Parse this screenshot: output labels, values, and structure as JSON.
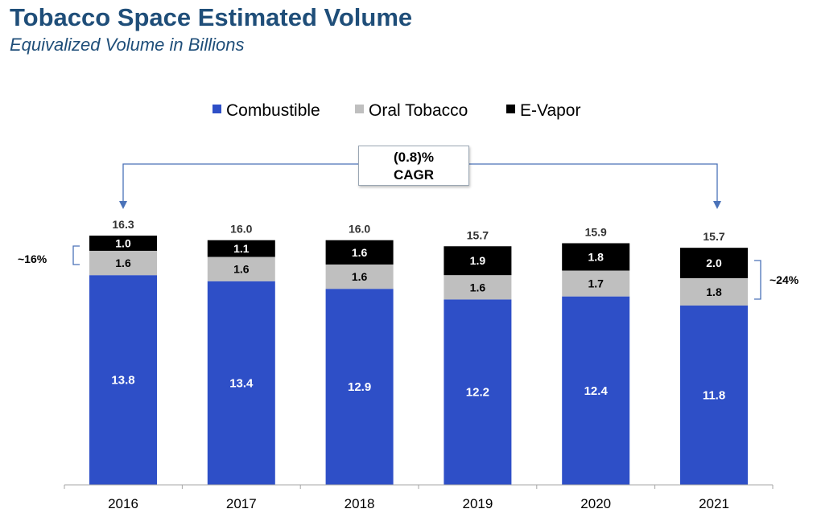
{
  "title": "Tobacco Space Estimated Volume",
  "subtitle": "Equivalized Volume in Billions",
  "cagr": {
    "value": "(0.8)%",
    "label": "CAGR"
  },
  "annotations": {
    "left": "~16%",
    "right": "~24%"
  },
  "colors": {
    "combustible": "#2e4fc7",
    "oral": "#bfbfbf",
    "evapor": "#000000",
    "title": "#1f4e79"
  },
  "chart_data": {
    "type": "bar",
    "stacked": true,
    "title": "Tobacco Space Estimated Volume",
    "subtitle": "Equivalized Volume in Billions",
    "categories": [
      "2016",
      "2017",
      "2018",
      "2019",
      "2020",
      "2021"
    ],
    "series": [
      {
        "name": "Combustible",
        "values": [
          13.8,
          13.4,
          12.9,
          12.2,
          12.4,
          11.8
        ]
      },
      {
        "name": "Oral Tobacco",
        "values": [
          1.6,
          1.6,
          1.6,
          1.6,
          1.7,
          1.8
        ]
      },
      {
        "name": "E-Vapor",
        "values": [
          1.0,
          1.1,
          1.6,
          1.9,
          1.8,
          2.0
        ]
      }
    ],
    "totals": [
      "16.3",
      "16.0",
      "16.0",
      "15.7",
      "15.9",
      "15.7"
    ],
    "value_labels": [
      [
        "13.8",
        "13.4",
        "12.9",
        "12.2",
        "12.4",
        "11.8"
      ],
      [
        "1.6",
        "1.6",
        "1.6",
        "1.6",
        "1.7",
        "1.8"
      ],
      [
        "1.0",
        "1.1",
        "1.6",
        "1.9",
        "1.8",
        "2.0"
      ]
    ],
    "legend_position": "top-center",
    "grid": false
  }
}
